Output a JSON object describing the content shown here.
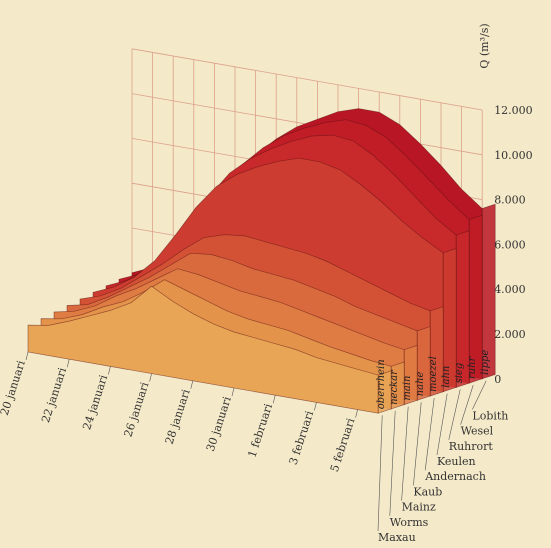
{
  "chart_data": {
    "type": "area",
    "ylabel": "Q (m³/s)",
    "yticks": [
      "0",
      "2.000",
      "4.000",
      "6.000",
      "8.000",
      "10.000",
      "12.000"
    ],
    "ylim": [
      0,
      12000
    ],
    "x_labels": [
      "20 januari",
      "22 januari",
      "24 januari",
      "26 januari",
      "28 januari",
      "30 januari",
      "1 februari",
      "3 februari",
      "5 februari"
    ],
    "x_days": [
      0,
      2,
      4,
      6,
      8,
      10,
      12,
      14,
      16
    ],
    "x_range_days": [
      0,
      17
    ],
    "series": [
      {
        "name": "oberrhein",
        "station": "Maxau",
        "color": "#e8a556",
        "x": [
          0,
          1,
          2,
          3,
          4,
          5,
          6,
          7,
          8,
          9,
          10,
          11,
          12,
          13,
          14,
          15,
          16,
          17
        ],
        "values": [
          1200,
          1350,
          1700,
          2100,
          2500,
          3000,
          3900,
          3400,
          3000,
          2700,
          2500,
          2400,
          2300,
          2200,
          2000,
          1900,
          1800,
          1700
        ]
      },
      {
        "name": "neckar",
        "station": "Worms",
        "color": "#e4934b",
        "x": [
          0,
          1,
          2,
          3,
          4,
          5,
          6,
          7,
          8,
          9,
          10,
          11,
          12,
          13,
          14,
          15,
          16,
          17
        ],
        "values": [
          1300,
          1450,
          1800,
          2300,
          2700,
          3300,
          4000,
          3700,
          3400,
          3100,
          2900,
          2800,
          2700,
          2500,
          2300,
          2150,
          2000,
          1900
        ]
      },
      {
        "name": "main",
        "station": "Mainz",
        "color": "#de7c43",
        "x": [
          0,
          1,
          2,
          3,
          4,
          5,
          6,
          7,
          8,
          9,
          10,
          11,
          12,
          13,
          14,
          15,
          16,
          17
        ],
        "values": [
          1400,
          1600,
          2000,
          2600,
          3100,
          3700,
          4300,
          4200,
          4000,
          3800,
          3700,
          3600,
          3400,
          3200,
          3000,
          2800,
          2600,
          2450
        ]
      },
      {
        "name": "nahe",
        "station": "Kaub",
        "color": "#d96a3d",
        "x": [
          0,
          1,
          2,
          3,
          4,
          5,
          6,
          7,
          8,
          9,
          10,
          11,
          12,
          13,
          14,
          15,
          16,
          17
        ],
        "values": [
          1500,
          1700,
          2200,
          2800,
          3400,
          4100,
          4800,
          4900,
          4800,
          4600,
          4500,
          4400,
          4200,
          4000,
          3700,
          3500,
          3300,
          3100
        ]
      },
      {
        "name": "moezel",
        "station": "Andernach",
        "color": "#d35236",
        "x": [
          0,
          1,
          2,
          3,
          4,
          5,
          6,
          7,
          8,
          9,
          10,
          11,
          12,
          13,
          14,
          15,
          16,
          17
        ],
        "values": [
          1600,
          1900,
          2400,
          3100,
          3800,
          4600,
          5300,
          5600,
          5700,
          5600,
          5500,
          5400,
          5200,
          4900,
          4600,
          4300,
          4000,
          3800
        ]
      },
      {
        "name": "lahn",
        "station": "Keulen",
        "color": "#cd3c30",
        "x": [
          0,
          1,
          2,
          3,
          4,
          5,
          6,
          7,
          8,
          9,
          10,
          11,
          12,
          13,
          14,
          15,
          16,
          17
        ],
        "values": [
          1700,
          2100,
          2700,
          3600,
          4900,
          6300,
          7400,
          8100,
          8600,
          9000,
          9300,
          9300,
          9100,
          8600,
          8000,
          7300,
          6700,
          6200
        ]
      },
      {
        "name": "sieg",
        "station": "Ruhrort",
        "color": "#c8292b",
        "x": [
          0,
          1,
          2,
          3,
          4,
          5,
          6,
          7,
          8,
          9,
          10,
          11,
          12,
          13,
          14,
          15,
          16,
          17
        ],
        "values": [
          1800,
          2200,
          2900,
          3800,
          5100,
          6600,
          7800,
          8600,
          9200,
          9700,
          10100,
          10300,
          10200,
          9700,
          9000,
          8200,
          7400,
          6800
        ]
      },
      {
        "name": "ruhr",
        "station": "Wesel",
        "color": "#c11d27",
        "x": [
          0,
          1,
          2,
          3,
          4,
          5,
          6,
          7,
          8,
          9,
          10,
          11,
          12,
          13,
          14,
          15,
          16,
          17
        ],
        "values": [
          1900,
          2300,
          3000,
          3900,
          5200,
          6800,
          8000,
          8900,
          9600,
          10100,
          10500,
          10800,
          10700,
          10300,
          9600,
          8800,
          8000,
          7300
        ]
      },
      {
        "name": "lippe",
        "station": "Lobith",
        "color": "#b81624",
        "x": [
          0,
          1,
          2,
          3,
          4,
          5,
          6,
          7,
          8,
          9,
          10,
          11,
          12,
          13,
          14,
          15,
          16,
          17
        ],
        "values": [
          2000,
          2400,
          3100,
          4000,
          5300,
          6900,
          8200,
          9100,
          9800,
          10300,
          10800,
          11100,
          11100,
          10700,
          10000,
          9200,
          8300,
          7600
        ]
      }
    ],
    "grid": true
  }
}
